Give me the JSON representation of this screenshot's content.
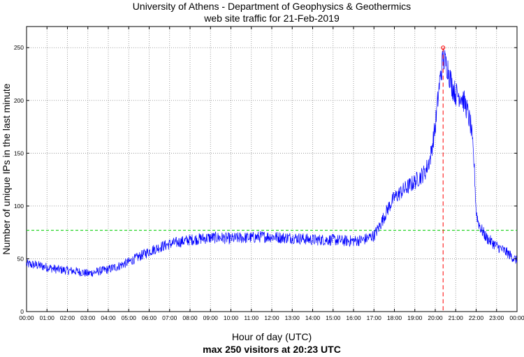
{
  "chart_data": {
    "type": "line",
    "title": "University of Athens - Department of Geophysics & Geothermics",
    "subtitle": "web site traffic for 21-Feb-2019",
    "xlabel": "Hour of day (UTC)",
    "ylabel": "Number of unique IPs in the last minute",
    "footer": "max 250 visitors at 20:23 UTC",
    "xlim": [
      0,
      24
    ],
    "ylim": [
      0,
      270
    ],
    "x_ticks": [
      "00:00",
      "01:00",
      "02:00",
      "03:00",
      "04:00",
      "05:00",
      "06:00",
      "07:00",
      "08:00",
      "09:00",
      "10:00",
      "11:00",
      "12:00",
      "13:00",
      "14:00",
      "15:00",
      "16:00",
      "17:00",
      "18:00",
      "19:00",
      "20:00",
      "21:00",
      "22:00",
      "23:00",
      "00:00"
    ],
    "y_ticks": [
      0,
      50,
      100,
      150,
      200,
      250
    ],
    "grid": true,
    "series": [
      {
        "color": "#0000ff",
        "points": [
          [
            0.0,
            45
          ],
          [
            0.5,
            44
          ],
          [
            1.0,
            42
          ],
          [
            1.5,
            40
          ],
          [
            2.0,
            39
          ],
          [
            2.5,
            38
          ],
          [
            3.0,
            36
          ],
          [
            3.5,
            38
          ],
          [
            4.0,
            40
          ],
          [
            4.5,
            43
          ],
          [
            5.0,
            47
          ],
          [
            5.5,
            52
          ],
          [
            6.0,
            57
          ],
          [
            6.5,
            61
          ],
          [
            7.0,
            64
          ],
          [
            7.5,
            66
          ],
          [
            8.0,
            68
          ],
          [
            8.5,
            69
          ],
          [
            9.0,
            70
          ],
          [
            9.5,
            70
          ],
          [
            10.0,
            69
          ],
          [
            10.5,
            70
          ],
          [
            11.0,
            70
          ],
          [
            11.5,
            71
          ],
          [
            12.0,
            71
          ],
          [
            12.5,
            70
          ],
          [
            13.0,
            70
          ],
          [
            13.5,
            69
          ],
          [
            14.0,
            68
          ],
          [
            14.5,
            68
          ],
          [
            15.0,
            68
          ],
          [
            15.5,
            67
          ],
          [
            16.0,
            67
          ],
          [
            16.5,
            68
          ],
          [
            17.0,
            72
          ],
          [
            17.25,
            80
          ],
          [
            17.5,
            90
          ],
          [
            17.75,
            100
          ],
          [
            18.0,
            108
          ],
          [
            18.5,
            116
          ],
          [
            19.0,
            123
          ],
          [
            19.5,
            132
          ],
          [
            19.75,
            145
          ],
          [
            20.0,
            175
          ],
          [
            20.2,
            215
          ],
          [
            20.38,
            240
          ],
          [
            20.6,
            232
          ],
          [
            20.8,
            215
          ],
          [
            21.0,
            206
          ],
          [
            21.25,
            205
          ],
          [
            21.5,
            195
          ],
          [
            21.75,
            175
          ],
          [
            21.9,
            140
          ],
          [
            22.0,
            95
          ],
          [
            22.1,
            85
          ],
          [
            22.25,
            78
          ],
          [
            22.5,
            70
          ],
          [
            23.0,
            62
          ],
          [
            23.5,
            56
          ],
          [
            24.0,
            48
          ]
        ]
      }
    ],
    "reference_line": {
      "y": 77,
      "color": "#00cc00"
    },
    "peak": {
      "x": 20.383,
      "y": 250,
      "color": "#ff0000"
    }
  }
}
